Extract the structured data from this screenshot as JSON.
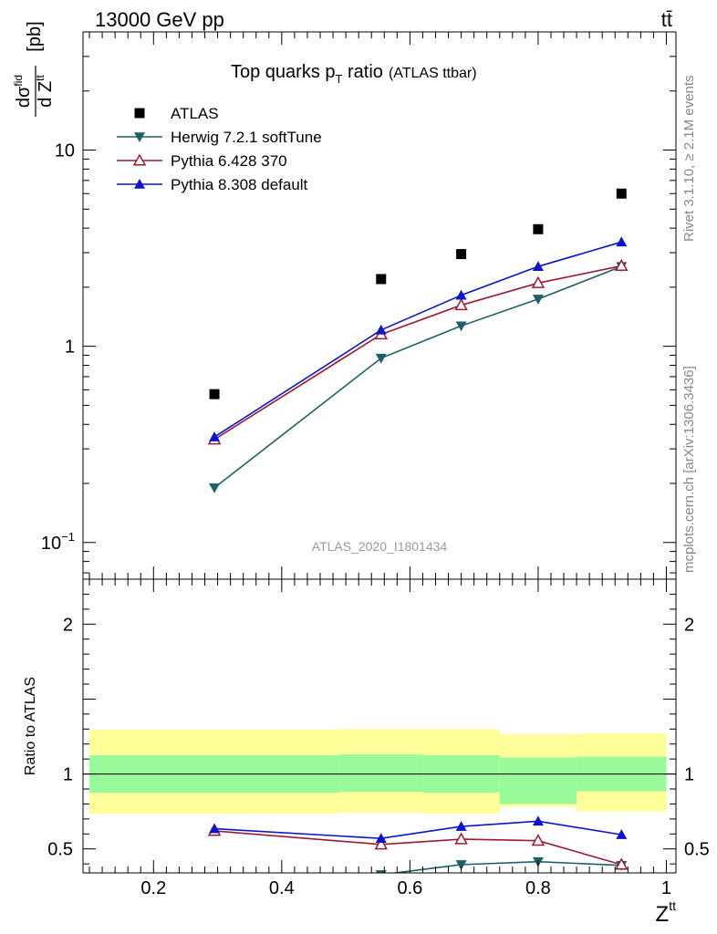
{
  "header": {
    "left": "13000 GeV pp",
    "right": "tt̄"
  },
  "side": {
    "rivet": "Rivet 3.1.10, ≥ 2.1M events",
    "mcplots": "mcplots.cern.ch [arXiv:1306.3436]"
  },
  "colors": {
    "atlas": "#000000",
    "herwig": "#1f5f66",
    "pythia6": "#9b1b30",
    "pythia8": "#0b14cc",
    "band_inner": "#99fa99",
    "band_outer": "#ffff9a"
  },
  "chart_data": [
    {
      "type": "scatter",
      "title": "Top quarks p",
      "title_sub": "T",
      "title_suffix": " ratio",
      "title_note": "(ATLAS ttbar)",
      "analysis_label": "ATLAS_2020_I1801434",
      "ylabel": "[pb]",
      "ylabel_top": "dσ",
      "ylabel_top_sup": "fid",
      "ylabel_bottom": "d Z",
      "ylabel_bottom_sup": "tt",
      "yscale": "log",
      "xlim": [
        0.09,
        1.015
      ],
      "ylim": [
        0.065,
        40
      ],
      "yticks": [
        {
          "value": 0.1,
          "label": "10",
          "sup": "−1"
        },
        {
          "value": 1,
          "label": "1",
          "sup": ""
        },
        {
          "value": 10,
          "label": "10",
          "sup": ""
        }
      ],
      "legend_placement": "top-left",
      "series": [
        {
          "name": "ATLAS",
          "marker": "square",
          "color": "#000000",
          "line": false,
          "x": [
            0.295,
            0.555,
            0.68,
            0.8,
            0.93
          ],
          "y": [
            0.57,
            2.2,
            2.95,
            3.95,
            6.0
          ]
        },
        {
          "name": "Herwig 7.2.1 softTune",
          "marker": "triangle-down",
          "color": "#1f5f66",
          "line": true,
          "x": [
            0.295,
            0.555,
            0.68,
            0.8,
            0.93
          ],
          "y": [
            0.19,
            0.87,
            1.27,
            1.74,
            2.55
          ]
        },
        {
          "name": "Pythia 6.428 370",
          "marker": "triangle-open",
          "color": "#9b1b30",
          "line": true,
          "x": [
            0.295,
            0.555,
            0.68,
            0.8,
            0.93
          ],
          "y": [
            0.335,
            1.15,
            1.62,
            2.1,
            2.57
          ]
        },
        {
          "name": "Pythia 8.308 default",
          "marker": "triangle",
          "color": "#0b14cc",
          "line": true,
          "x": [
            0.295,
            0.555,
            0.68,
            0.8,
            0.93
          ],
          "y": [
            0.345,
            1.21,
            1.82,
            2.55,
            3.4
          ]
        }
      ]
    },
    {
      "type": "line",
      "ylabel": "Ratio to ATLAS",
      "xlabel": "Z",
      "xlabel_sup": "tt",
      "xlim": [
        0.09,
        1.015
      ],
      "ylim": [
        0.34,
        2.3
      ],
      "xticks": [
        0.2,
        0.4,
        0.6,
        0.8,
        1
      ],
      "xtick_labels": [
        "0.2",
        "0.4",
        "0.6",
        "0.8",
        "1"
      ],
      "yticks": [
        0.5,
        1,
        2
      ],
      "ytick_labels": [
        "0.5",
        "1",
        "2"
      ],
      "reference_line": 1,
      "bands": [
        {
          "x0": 0.1,
          "x1": 0.49,
          "outer": [
            0.735,
            1.295
          ],
          "inner": [
            0.875,
            1.125
          ]
        },
        {
          "x0": 0.49,
          "x1": 0.62,
          "outer": [
            0.742,
            1.3
          ],
          "inner": [
            0.88,
            1.13
          ]
        },
        {
          "x0": 0.62,
          "x1": 0.74,
          "outer": [
            0.735,
            1.3
          ],
          "inner": [
            0.875,
            1.125
          ]
        },
        {
          "x0": 0.74,
          "x1": 0.86,
          "outer": [
            0.78,
            1.265
          ],
          "inner": [
            0.8,
            1.11
          ]
        },
        {
          "x0": 0.86,
          "x1": 1.0,
          "outer": [
            0.75,
            1.27
          ],
          "inner": [
            0.885,
            1.115
          ]
        }
      ],
      "series": [
        {
          "name": "Herwig 7.2.1 softTune",
          "marker": "triangle-down",
          "color": "#1f5f66",
          "x": [
            0.555,
            0.68,
            0.8,
            0.93
          ],
          "y": [
            0.328,
            0.395,
            0.415,
            0.39
          ],
          "err": [
            0,
            0.012,
            0.01,
            0.01
          ]
        },
        {
          "name": "Pythia 6.428 370",
          "marker": "triangle-open",
          "color": "#9b1b30",
          "x": [
            0.295,
            0.555,
            0.68,
            0.8,
            0.93
          ],
          "y": [
            0.62,
            0.53,
            0.565,
            0.555,
            0.395
          ],
          "err": [
            0.02,
            0.015,
            0.015,
            0.015,
            0.01
          ]
        },
        {
          "name": "Pythia 8.308 default",
          "marker": "triangle",
          "color": "#0b14cc",
          "x": [
            0.295,
            0.555,
            0.68,
            0.8,
            0.93
          ],
          "y": [
            0.635,
            0.57,
            0.65,
            0.685,
            0.595
          ],
          "err": [
            0.025,
            0.025,
            0.02,
            0.018,
            0.012
          ]
        }
      ]
    }
  ]
}
